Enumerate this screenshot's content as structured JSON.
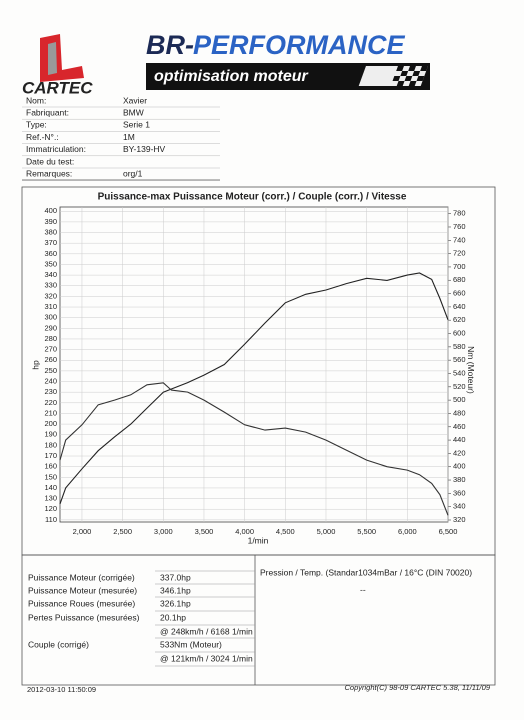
{
  "header": {
    "brand": "CARTEC",
    "title_prefix": "BR-",
    "title_main": "PERFORMANCE",
    "subtitle": "optimisation moteur"
  },
  "info": {
    "rows": [
      {
        "label": "Nom:",
        "value": "Xavier"
      },
      {
        "label": "Fabriquant:",
        "value": "BMW"
      },
      {
        "label": "Type:",
        "value": "Serie 1"
      },
      {
        "label": "Ref.-N°.:",
        "value": "1M"
      },
      {
        "label": "Immatriculation:",
        "value": "BY-139-HV"
      },
      {
        "label": "Date du test:"
      },
      {
        "label": "Remarques:",
        "value": "org/1"
      }
    ]
  },
  "chart_data": {
    "type": "line",
    "title": "Puissance-max Puissance Moteur (corr.) / Couple (corr.) / Vitesse",
    "x_label": "1/min",
    "y_label": "hp",
    "y2_label": "Nm (Moteur)",
    "x": [
      1730,
      1800,
      2000,
      2200,
      2400,
      2600,
      2800,
      3000,
      3100,
      3300,
      3500,
      3750,
      4000,
      4250,
      4500,
      4750,
      5000,
      5250,
      5500,
      5750,
      6000,
      6150,
      6300,
      6400,
      6500
    ],
    "series": [
      {
        "color": "#222222",
        "values": [
          125,
          140,
          158,
          175,
          188,
          200,
          215,
          230,
          233,
          239,
          246,
          256,
          275,
          295,
          314,
          322,
          326,
          332,
          337,
          335,
          340,
          342,
          336,
          318,
          298
        ]
      },
      {
        "color": "#333333",
        "axis": "y2",
        "values": [
          410,
          440,
          463,
          493,
          500,
          508,
          523,
          526,
          515,
          512,
          500,
          482,
          463,
          455,
          458,
          452,
          440,
          425,
          410,
          400,
          395,
          388,
          375,
          358,
          327
        ]
      }
    ],
    "xlim": [
      1730,
      6500
    ],
    "xticks": [
      {
        "value": 2000,
        "label": "2,000"
      },
      {
        "value": 2500,
        "label": "2,500"
      },
      {
        "value": 3000,
        "label": "3,000"
      },
      {
        "value": 3500,
        "label": "3,500"
      },
      {
        "value": 4000,
        "label": "4,000"
      },
      {
        "value": 4500,
        "label": "4,500"
      },
      {
        "value": 5000,
        "label": "5,000"
      },
      {
        "value": 5500,
        "label": "5,500"
      },
      {
        "value": 6000,
        "label": "6,000"
      },
      {
        "value": 6500,
        "label": "6,500"
      }
    ],
    "ylim": [
      108,
      404
    ],
    "yticks": [
      110,
      120,
      130,
      140,
      150,
      160,
      170,
      180,
      190,
      200,
      210,
      220,
      230,
      240,
      250,
      260,
      270,
      280,
      290,
      300,
      310,
      320,
      330,
      340,
      350,
      360,
      370,
      380,
      390,
      400
    ],
    "y2lim": [
      317,
      790
    ],
    "y2ticks": [
      320,
      340,
      360,
      380,
      400,
      420,
      440,
      460,
      480,
      500,
      520,
      540,
      560,
      580,
      600,
      620,
      640,
      660,
      680,
      700,
      720,
      740,
      760,
      780
    ],
    "grid": true
  },
  "results": {
    "power_rows": [
      {
        "label": "Puissance Moteur (corrigée)",
        "value": "337.0hp"
      },
      {
        "label": "Puissance Moteur (mesurée)",
        "value": "346.1hp"
      },
      {
        "label": "Puissance Roues (mesurée)",
        "value": "326.1hp"
      },
      {
        "label": "Pertes Puissance (mesurées)",
        "value": "20.1hp"
      }
    ],
    "power_at": "@ 248km/h / 6168 1/min",
    "torque": {
      "label": "Couple (corrigé)",
      "value": "533Nm (Moteur)",
      "at": "@ 121km/h / 3024 1/min"
    },
    "pressure": "Pression / Temp. (Standar1034mBar / 16°C   (DIN 70020)",
    "pressure_value": "--"
  },
  "footer": {
    "timestamp": "2012-03-10 11:50:09",
    "copyright": "Copyright(C) 98-09 CARTEC 5.38, 11/11/09"
  }
}
